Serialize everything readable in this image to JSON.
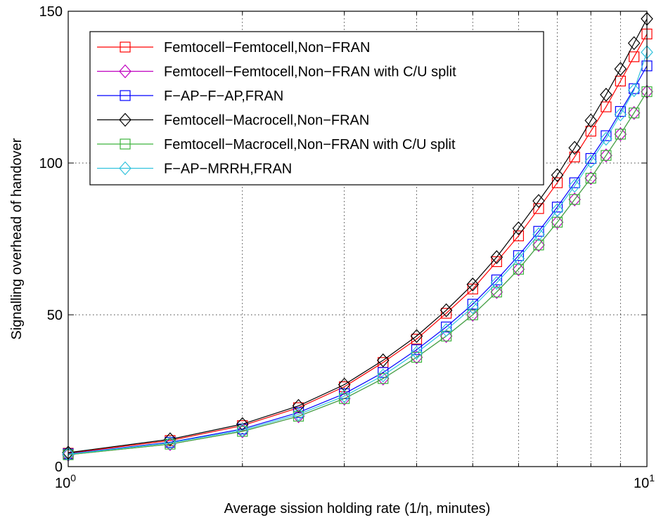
{
  "chart_data": {
    "type": "line",
    "title": "",
    "xlabel": "Average sission holding rate (1/η, minutes)",
    "ylabel": "Signalling overhead of handover",
    "xscale": "log",
    "xlim": [
      1,
      10
    ],
    "ylim": [
      0,
      150
    ],
    "grid": true,
    "legend_position": "top-left",
    "x_ticks": [
      {
        "value": 1,
        "base": "10",
        "exp": "0"
      },
      {
        "value": 10,
        "base": "10",
        "exp": "1"
      }
    ],
    "y_ticks": [
      {
        "value": 0,
        "label": "0"
      },
      {
        "value": 50,
        "label": "50"
      },
      {
        "value": 100,
        "label": "100"
      },
      {
        "value": 150,
        "label": "150"
      }
    ],
    "x": [
      1,
      1.5,
      2,
      2.5,
      3,
      3.5,
      4,
      4.5,
      5,
      5.5,
      6,
      6.5,
      7,
      7.5,
      8,
      8.5,
      9,
      9.5,
      10
    ],
    "series": [
      {
        "name": "Femtocell−Femtocell,Non−FRAN",
        "color": "#ff0000",
        "marker": "square",
        "values": [
          4.4,
          8.6,
          13.5,
          19.4,
          26.3,
          34.3,
          42.0,
          50.5,
          58.5,
          67.5,
          76.0,
          85.0,
          93.5,
          102.0,
          110.5,
          118.5,
          127.0,
          135.0,
          142.5
        ]
      },
      {
        "name": "Femtocell−Femtocell,Non−FRAN with C/U split",
        "color": "#bf00bf",
        "marker": "diamond",
        "values": [
          3.9,
          7.4,
          11.6,
          16.6,
          22.4,
          29.0,
          36.0,
          43.0,
          50.0,
          57.5,
          65.0,
          73.0,
          80.5,
          88.0,
          95.0,
          102.5,
          109.5,
          116.5,
          123.5
        ]
      },
      {
        "name": "F−AP−F−AP,FRAN",
        "color": "#0000ff",
        "marker": "square",
        "values": [
          4.2,
          8.0,
          12.4,
          17.8,
          24.0,
          31.0,
          38.5,
          46.0,
          53.5,
          61.5,
          69.5,
          77.5,
          85.5,
          93.5,
          101.5,
          109.0,
          117.0,
          124.5,
          132.0
        ]
      },
      {
        "name": "Femtocell−Macrocell,Non−FRAN",
        "color": "#000000",
        "marker": "diamond",
        "values": [
          4.6,
          9.0,
          14.0,
          20.0,
          27.0,
          35.0,
          43.0,
          51.5,
          60.0,
          69.0,
          78.5,
          87.5,
          96.0,
          105.0,
          114.0,
          122.5,
          131.0,
          139.5,
          147.5
        ]
      },
      {
        "name": "Femtocell−Macrocell,Non−FRAN with C/U split",
        "color": "#3cb43c",
        "marker": "square",
        "values": [
          3.9,
          7.4,
          11.6,
          16.6,
          22.4,
          29.0,
          36.0,
          43.0,
          50.0,
          57.5,
          65.0,
          73.0,
          80.5,
          88.0,
          95.0,
          102.5,
          109.5,
          116.5,
          123.5
        ]
      },
      {
        "name": "F−AP−MRRH,FRAN",
        "color": "#33c3dd",
        "marker": "diamond",
        "values": [
          4.1,
          7.8,
          12.0,
          17.2,
          23.2,
          30.0,
          37.5,
          45.0,
          52.5,
          60.5,
          68.5,
          76.5,
          84.5,
          92.5,
          100.5,
          108.0,
          116.0,
          124.0,
          136.5
        ]
      }
    ]
  }
}
